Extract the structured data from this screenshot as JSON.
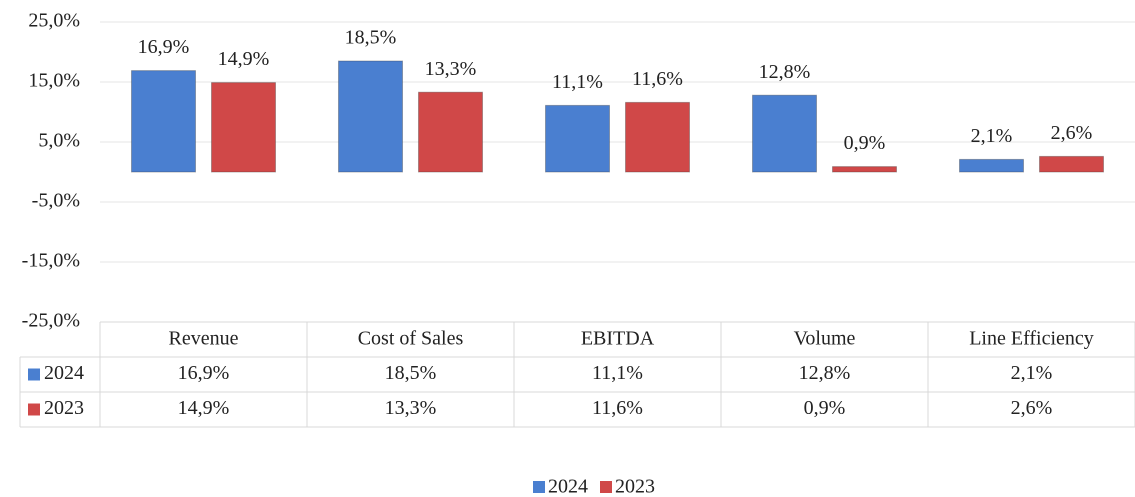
{
  "chart_data": {
    "type": "bar",
    "categories": [
      "Revenue",
      "Cost of Sales",
      "EBITDA",
      "Volume",
      "Line Efficiency"
    ],
    "series": [
      {
        "name": "2024",
        "color": "#4a7fd0",
        "values": [
          16.9,
          18.5,
          11.1,
          12.8,
          2.1
        ],
        "value_labels": [
          "16,9%",
          "18,5%",
          "11,1%",
          "12,8%",
          "2,1%"
        ]
      },
      {
        "name": "2023",
        "color": "#d04848",
        "values": [
          14.9,
          13.3,
          11.6,
          0.9,
          2.6
        ],
        "value_labels": [
          "14,9%",
          "13,3%",
          "11,6%",
          "0,9%",
          "2,6%"
        ]
      }
    ],
    "ylim": [
      -25,
      25
    ],
    "yticks": [
      {
        "value": 25,
        "label": "25,0%"
      },
      {
        "value": 15,
        "label": "15,0%"
      },
      {
        "value": 5,
        "label": "5,0%"
      },
      {
        "value": -5,
        "label": "-5,0%"
      },
      {
        "value": -15,
        "label": "-15,0%"
      },
      {
        "value": -25,
        "label": "-25,0%"
      }
    ],
    "grid": true,
    "data_table": true,
    "legend": "bottom"
  }
}
